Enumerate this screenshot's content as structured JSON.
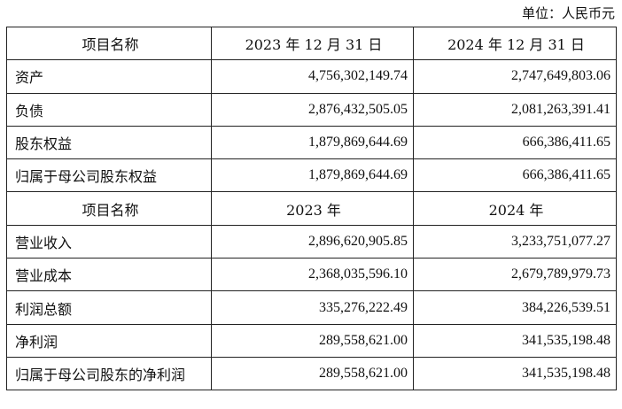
{
  "unit_label": "单位：人民币元",
  "balance": {
    "header": [
      "项目名称",
      "2023 年 12 月 31 日",
      "2024 年 12 月 31 日"
    ],
    "rows": [
      {
        "label": "资产",
        "v2023": "4,756,302,149.74",
        "v2024": "2,747,649,803.06"
      },
      {
        "label": "负债",
        "v2023": "2,876,432,505.05",
        "v2024": "2,081,263,391.41"
      },
      {
        "label": "股东权益",
        "v2023": "1,879,869,644.69",
        "v2024": "666,386,411.65"
      },
      {
        "label": "归属于母公司股东权益",
        "v2023": "1,879,869,644.69",
        "v2024": "666,386,411.65"
      }
    ]
  },
  "income": {
    "header": [
      "项目名称",
      "2023 年",
      "2024 年"
    ],
    "rows": [
      {
        "label": "营业收入",
        "v2023": "2,896,620,905.85",
        "v2024": "3,233,751,077.27"
      },
      {
        "label": "营业成本",
        "v2023": "2,368,035,596.10",
        "v2024": "2,679,789,979.73"
      },
      {
        "label": "利润总额",
        "v2023": "335,276,222.49",
        "v2024": "384,226,539.51"
      },
      {
        "label": "净利润",
        "v2023": "289,558,621.00",
        "v2024": "341,535,198.48"
      },
      {
        "label": "归属于母公司股东的净利润",
        "v2023": "289,558,621.00",
        "v2024": "341,535,198.48"
      }
    ]
  }
}
